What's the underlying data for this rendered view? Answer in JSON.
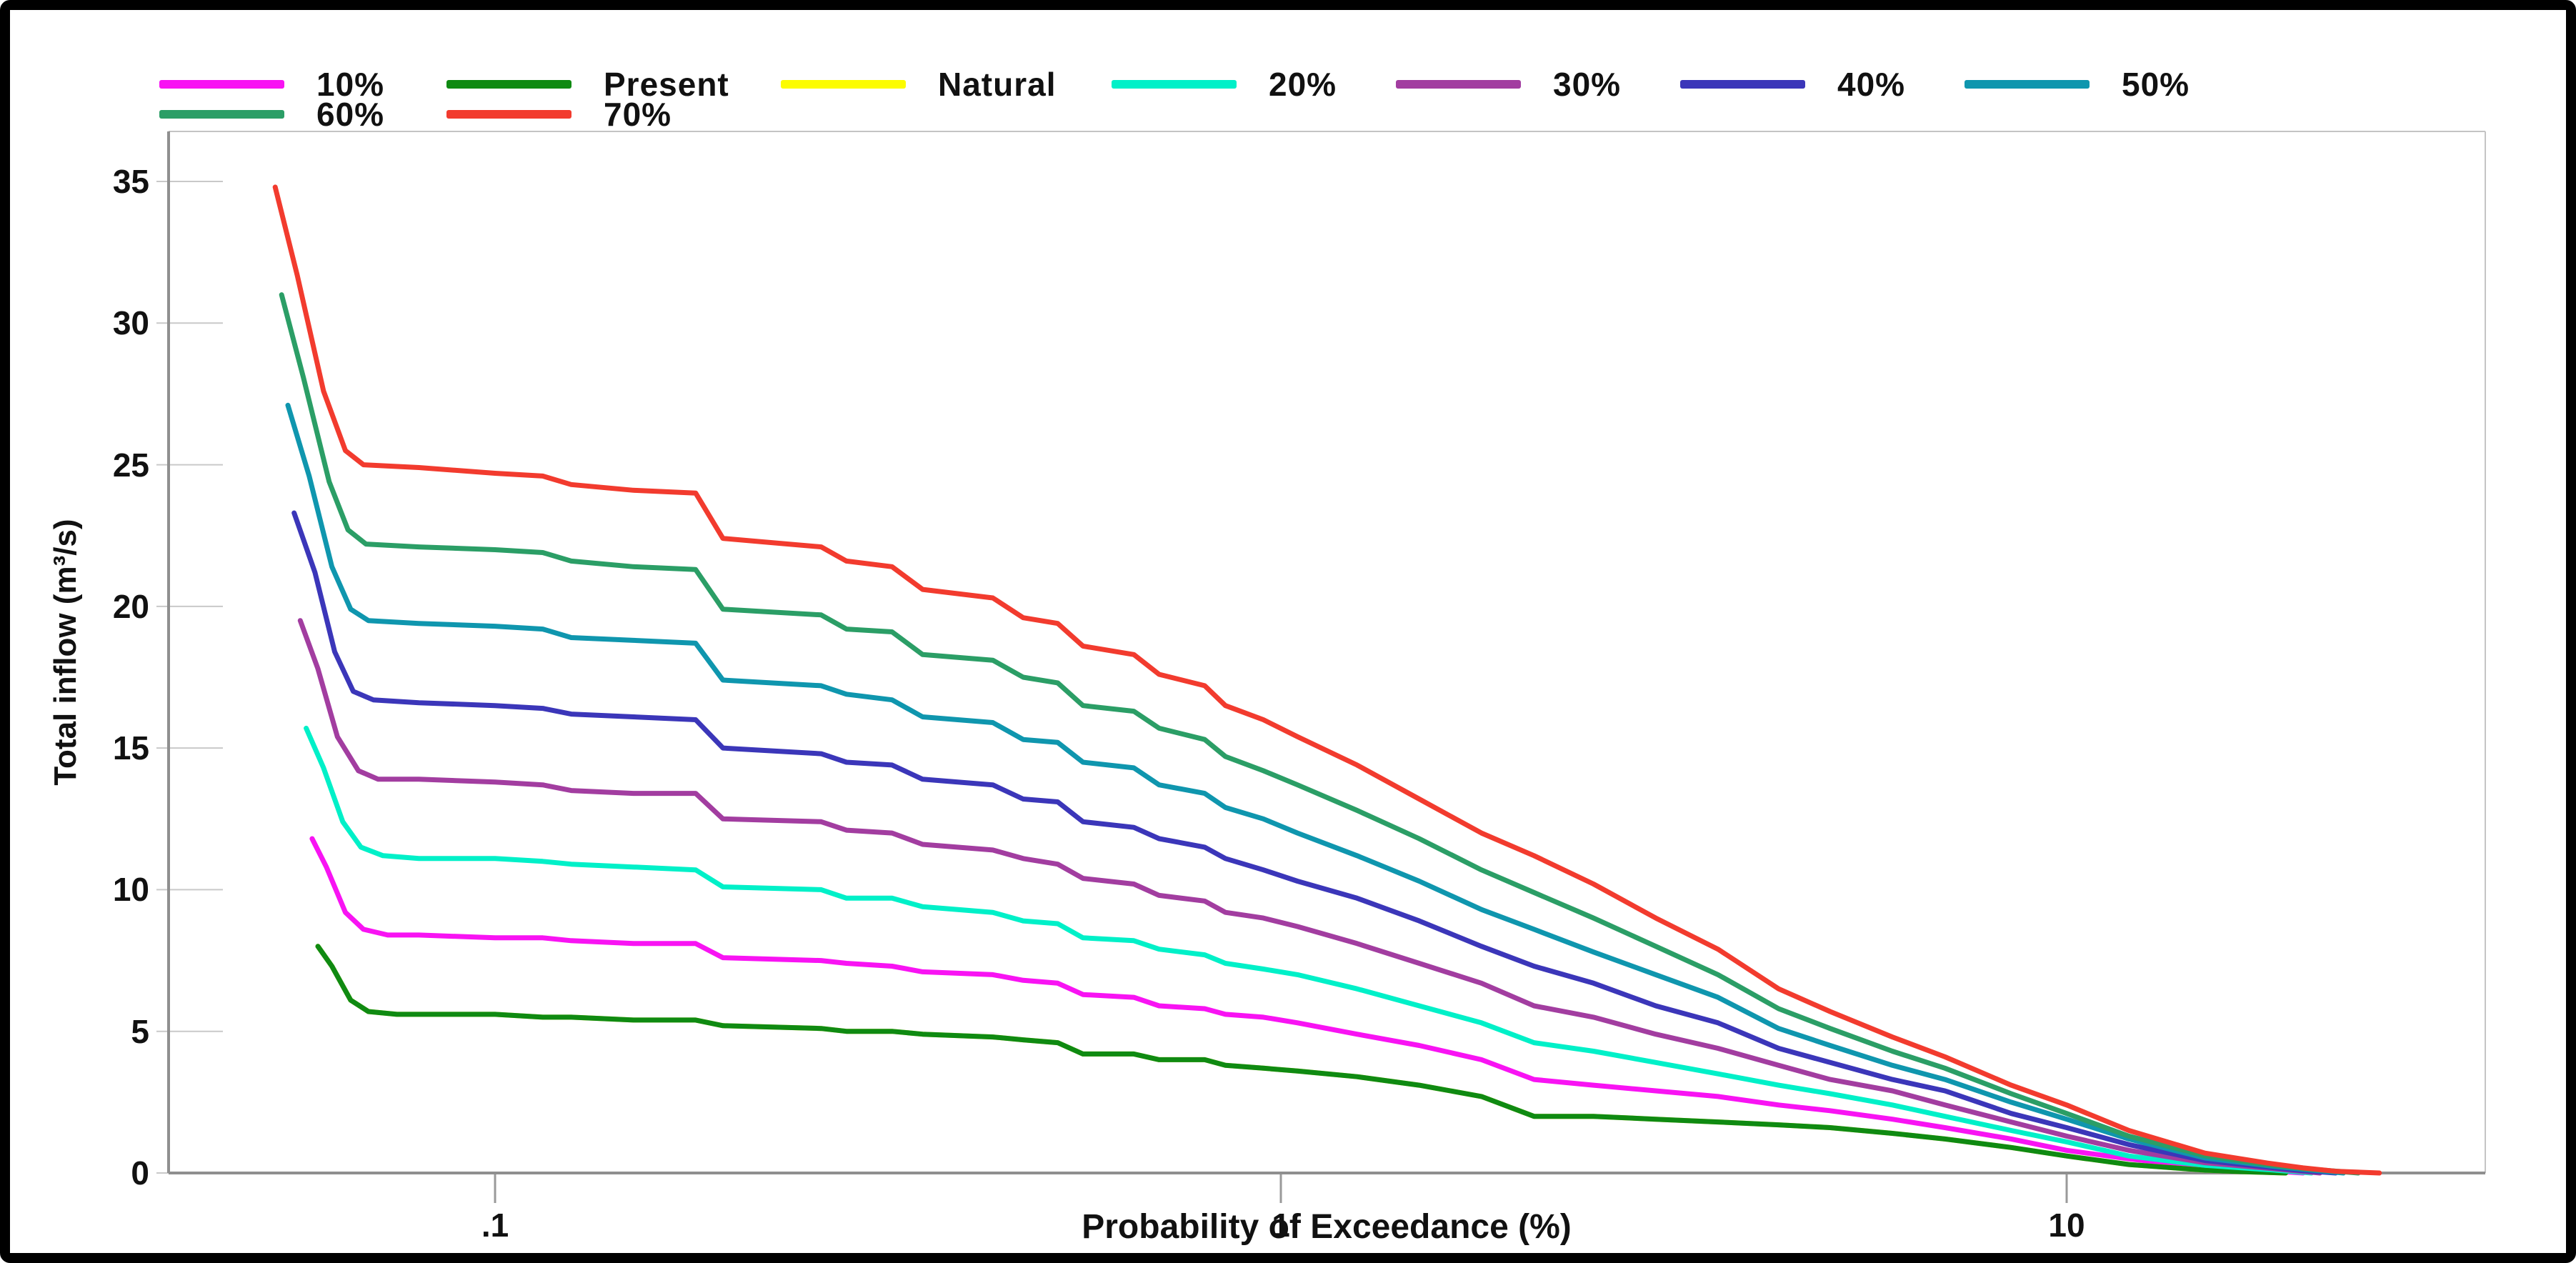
{
  "chart_data": {
    "type": "line",
    "title": "",
    "xlabel": "Probability of Exceedance (%)",
    "ylabel": "Total inflow (m³/s)",
    "x_scale": "log",
    "xlim": [
      0.04,
      33
    ],
    "ylim": [
      0,
      35
    ],
    "grid": false,
    "legend_position": "top",
    "x_ticks": [
      {
        "value": 0.1,
        "label": ".1"
      },
      {
        "value": 1,
        "label": "1"
      },
      {
        "value": 10,
        "label": "10"
      }
    ],
    "y_ticks": [
      0,
      5,
      10,
      15,
      20,
      25,
      30,
      35
    ],
    "legend_rows": [
      [
        {
          "label": "10%",
          "color": "#F813F3"
        },
        {
          "label": "Present",
          "color": "#0F8A12"
        },
        {
          "label": "Natural",
          "color": "#FCFC00"
        },
        {
          "label": "20%",
          "color": "#00F0C8"
        },
        {
          "label": "30%",
          "color": "#A23DA0"
        },
        {
          "label": "40%",
          "color": "#3B36B9"
        },
        {
          "label": "50%",
          "color": "#0F96AE"
        }
      ],
      [
        {
          "label": "60%",
          "color": "#2B9E66"
        },
        {
          "label": "70%",
          "color": "#F23B2E"
        }
      ]
    ],
    "x_main": [
      0.08,
      0.1,
      0.115,
      0.125,
      0.15,
      0.18,
      0.195,
      0.26,
      0.28,
      0.32,
      0.35,
      0.43,
      0.47,
      0.52,
      0.56,
      0.65,
      0.7,
      0.8,
      0.85,
      0.95,
      1.05,
      1.25,
      1.5,
      1.8,
      2.1,
      2.5,
      3.0,
      3.6,
      4.3,
      5.0,
      6.0,
      7.0,
      8.5,
      10,
      12
    ],
    "series": [
      {
        "name": "10%",
        "color": "#F813F3",
        "pre": [
          [
            0.0585,
            11.8
          ],
          [
            0.061,
            10.8
          ],
          [
            0.0645,
            9.2
          ],
          [
            0.068,
            8.6
          ],
          [
            0.073,
            8.4
          ]
        ],
        "values": [
          8.4,
          8.3,
          8.3,
          8.2,
          8.1,
          8.1,
          7.6,
          7.5,
          7.4,
          7.3,
          7.1,
          7.0,
          6.8,
          6.7,
          6.3,
          6.2,
          5.9,
          5.8,
          5.6,
          5.5,
          5.3,
          4.9,
          4.5,
          4.0,
          3.3,
          3.1,
          2.9,
          2.7,
          2.4,
          2.2,
          1.9,
          1.6,
          1.2,
          0.8,
          0.5
        ],
        "tail": [
          [
            15,
            0.19
          ],
          [
            18,
            0.08
          ],
          [
            20,
            0
          ]
        ]
      },
      {
        "name": "Natural",
        "color": "#FCFC00",
        "pre": [
          [
            0.0595,
            8.0
          ],
          [
            0.062,
            7.3
          ],
          [
            0.0655,
            6.1
          ],
          [
            0.069,
            5.7
          ],
          [
            0.075,
            5.6
          ]
        ],
        "values": [
          5.6,
          5.6,
          5.5,
          5.5,
          5.4,
          5.4,
          5.2,
          5.1,
          5.0,
          5.0,
          4.9,
          4.8,
          4.7,
          4.6,
          4.2,
          4.2,
          4.0,
          4.0,
          3.8,
          3.7,
          3.6,
          3.4,
          3.1,
          2.7,
          2.0,
          2.0,
          1.9,
          1.8,
          1.7,
          1.6,
          1.4,
          1.2,
          0.9,
          0.6,
          0.3
        ],
        "tail": [
          [
            15,
            0.1
          ],
          [
            17,
            0.04
          ],
          [
            19,
            0
          ]
        ]
      },
      {
        "name": "Present",
        "color": "#0F8A12",
        "pre": [
          [
            0.0595,
            8.0
          ],
          [
            0.062,
            7.3
          ],
          [
            0.0655,
            6.1
          ],
          [
            0.069,
            5.7
          ],
          [
            0.075,
            5.6
          ]
        ],
        "values": [
          5.6,
          5.6,
          5.5,
          5.5,
          5.4,
          5.4,
          5.2,
          5.1,
          5.0,
          5.0,
          4.9,
          4.8,
          4.7,
          4.6,
          4.2,
          4.2,
          4.0,
          4.0,
          3.8,
          3.7,
          3.6,
          3.4,
          3.1,
          2.7,
          2.0,
          2.0,
          1.9,
          1.8,
          1.7,
          1.6,
          1.4,
          1.2,
          0.9,
          0.6,
          0.3
        ],
        "tail": [
          [
            15,
            0.1
          ],
          [
            17,
            0.04
          ],
          [
            19,
            0
          ]
        ]
      },
      {
        "name": "20%",
        "color": "#00F0C8",
        "pre": [
          [
            0.0575,
            15.7
          ],
          [
            0.0605,
            14.3
          ],
          [
            0.064,
            12.4
          ],
          [
            0.0675,
            11.5
          ],
          [
            0.072,
            11.2
          ]
        ],
        "values": [
          11.1,
          11.1,
          11.0,
          10.9,
          10.8,
          10.7,
          10.1,
          10.0,
          9.7,
          9.7,
          9.4,
          9.2,
          8.9,
          8.8,
          8.3,
          8.2,
          7.9,
          7.7,
          7.4,
          7.2,
          7.0,
          6.5,
          5.9,
          5.3,
          4.6,
          4.3,
          3.9,
          3.5,
          3.1,
          2.8,
          2.4,
          2.0,
          1.5,
          1.1,
          0.6
        ],
        "tail": [
          [
            15,
            0.27
          ],
          [
            18,
            0.12
          ],
          [
            20.5,
            0
          ]
        ]
      },
      {
        "name": "30%",
        "color": "#A23DA0",
        "pre": [
          [
            0.0565,
            19.5
          ],
          [
            0.0595,
            17.8
          ],
          [
            0.063,
            15.4
          ],
          [
            0.067,
            14.2
          ],
          [
            0.071,
            13.9
          ]
        ],
        "values": [
          13.9,
          13.8,
          13.7,
          13.5,
          13.4,
          13.4,
          12.5,
          12.4,
          12.1,
          12.0,
          11.6,
          11.4,
          11.1,
          10.9,
          10.4,
          10.2,
          9.8,
          9.6,
          9.2,
          9.0,
          8.7,
          8.1,
          7.4,
          6.7,
          5.9,
          5.5,
          4.9,
          4.4,
          3.8,
          3.3,
          2.9,
          2.4,
          1.8,
          1.3,
          0.8
        ],
        "tail": [
          [
            15,
            0.36
          ],
          [
            18,
            0.17
          ],
          [
            21,
            0
          ]
        ]
      },
      {
        "name": "40%",
        "color": "#3B36B9",
        "pre": [
          [
            0.0555,
            23.3
          ],
          [
            0.059,
            21.2
          ],
          [
            0.0625,
            18.4
          ],
          [
            0.066,
            17.0
          ],
          [
            0.07,
            16.7
          ]
        ],
        "values": [
          16.6,
          16.5,
          16.4,
          16.2,
          16.1,
          16.0,
          15.0,
          14.8,
          14.5,
          14.4,
          13.9,
          13.7,
          13.2,
          13.1,
          12.4,
          12.2,
          11.8,
          11.5,
          11.1,
          10.7,
          10.3,
          9.7,
          8.9,
          8.0,
          7.3,
          6.7,
          5.9,
          5.3,
          4.4,
          3.9,
          3.3,
          2.9,
          2.1,
          1.6,
          1.0
        ],
        "tail": [
          [
            15,
            0.44
          ],
          [
            18,
            0.21
          ],
          [
            20,
            0.08
          ],
          [
            22,
            0
          ]
        ]
      },
      {
        "name": "50%",
        "color": "#0F96AE",
        "pre": [
          [
            0.0545,
            27.1
          ],
          [
            0.058,
            24.6
          ],
          [
            0.062,
            21.4
          ],
          [
            0.0655,
            19.9
          ],
          [
            0.069,
            19.5
          ]
        ],
        "values": [
          19.4,
          19.3,
          19.2,
          18.9,
          18.8,
          18.7,
          17.4,
          17.2,
          16.9,
          16.7,
          16.1,
          15.9,
          15.3,
          15.2,
          14.5,
          14.3,
          13.7,
          13.4,
          12.9,
          12.5,
          12.0,
          11.2,
          10.3,
          9.3,
          8.6,
          7.8,
          7.0,
          6.2,
          5.1,
          4.5,
          3.8,
          3.3,
          2.5,
          1.9,
          1.2
        ],
        "tail": [
          [
            15,
            0.53
          ],
          [
            18,
            0.26
          ],
          [
            20,
            0.13
          ],
          [
            22.5,
            0
          ]
        ]
      },
      {
        "name": "60%",
        "color": "#2B9E66",
        "pre": [
          [
            0.0535,
            31.0
          ],
          [
            0.057,
            28.1
          ],
          [
            0.0615,
            24.4
          ],
          [
            0.065,
            22.7
          ],
          [
            0.0685,
            22.2
          ]
        ],
        "values": [
          22.1,
          22.0,
          21.9,
          21.6,
          21.4,
          21.3,
          19.9,
          19.7,
          19.2,
          19.1,
          18.3,
          18.1,
          17.5,
          17.3,
          16.5,
          16.3,
          15.7,
          15.3,
          14.7,
          14.2,
          13.7,
          12.8,
          11.8,
          10.7,
          9.9,
          9.0,
          8.0,
          7.0,
          5.8,
          5.1,
          4.3,
          3.7,
          2.8,
          2.1,
          1.3
        ],
        "tail": [
          [
            15,
            0.61
          ],
          [
            18,
            0.3
          ],
          [
            20,
            0.16
          ],
          [
            23.5,
            0
          ]
        ]
      },
      {
        "name": "70%",
        "color": "#F23B2E",
        "pre": [
          [
            0.0525,
            34.8
          ],
          [
            0.056,
            31.7
          ],
          [
            0.0605,
            27.6
          ],
          [
            0.0645,
            25.5
          ],
          [
            0.068,
            25.0
          ]
        ],
        "values": [
          24.9,
          24.7,
          24.6,
          24.3,
          24.1,
          24.0,
          22.4,
          22.1,
          21.6,
          21.4,
          20.6,
          20.3,
          19.6,
          19.4,
          18.6,
          18.3,
          17.6,
          17.2,
          16.5,
          16.0,
          15.4,
          14.4,
          13.2,
          12.0,
          11.2,
          10.2,
          9.0,
          7.9,
          6.5,
          5.7,
          4.8,
          4.1,
          3.1,
          2.4,
          1.5
        ],
        "tail": [
          [
            15,
            0.7
          ],
          [
            18,
            0.35
          ],
          [
            20,
            0.18
          ],
          [
            22,
            0.06
          ],
          [
            25,
            0
          ]
        ]
      }
    ]
  }
}
